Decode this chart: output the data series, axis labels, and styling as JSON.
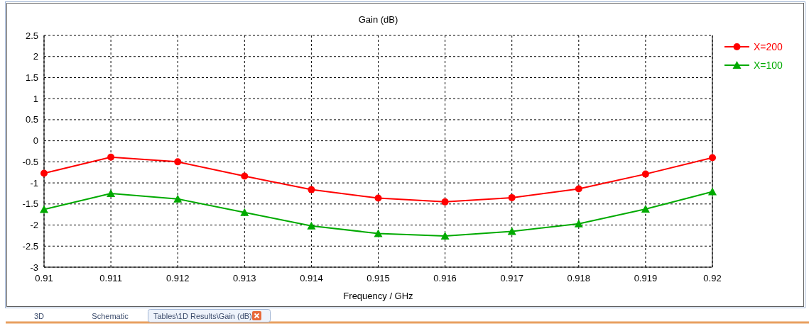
{
  "chart_data": {
    "type": "line",
    "title": "Gain (dB)",
    "xlabel": "Frequency / GHz",
    "x": [
      0.91,
      0.911,
      0.912,
      0.913,
      0.914,
      0.915,
      0.916,
      0.917,
      0.918,
      0.919,
      0.92
    ],
    "series": [
      {
        "name": "X=200",
        "color": "#ff0000",
        "marker": "circle",
        "values": [
          -0.77,
          -0.39,
          -0.5,
          -0.84,
          -1.16,
          -1.36,
          -1.45,
          -1.35,
          -1.14,
          -0.79,
          -0.4
        ]
      },
      {
        "name": "X=100",
        "color": "#00aa00",
        "marker": "triangle",
        "values": [
          -1.63,
          -1.25,
          -1.38,
          -1.7,
          -2.02,
          -2.2,
          -2.26,
          -2.15,
          -1.97,
          -1.62,
          -1.21
        ]
      }
    ],
    "xlim": [
      0.91,
      0.92
    ],
    "xticks": [
      0.91,
      0.911,
      0.912,
      0.913,
      0.914,
      0.915,
      0.916,
      0.917,
      0.918,
      0.919,
      0.92
    ],
    "ylim": [
      -3,
      2.5
    ],
    "yticks": [
      -3,
      -2.5,
      -2,
      -1.5,
      -1,
      -0.5,
      0,
      0.5,
      1,
      1.5,
      2,
      2.5
    ],
    "grid": true,
    "legend": "top right",
    "line_style": "solid",
    "annotations": [
      "3D",
      "Schematic",
      "Tables\\1D Results\\Gain (dB)"
    ]
  }
}
